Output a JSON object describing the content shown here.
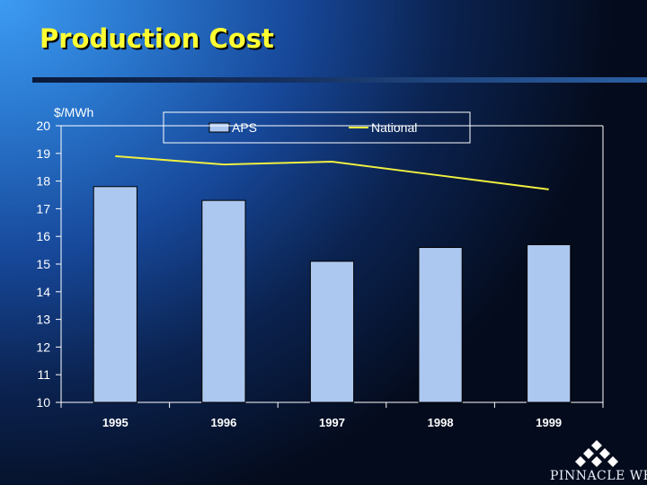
{
  "slide": {
    "title": "Production Cost",
    "unit_label": "$/MWh"
  },
  "logo": {
    "text": "PINNACLE WEST",
    "icon": "diamond-cluster-icon"
  },
  "colors": {
    "title": "#ffff33",
    "bar_fill": "#adc8f0",
    "line": "#f0f040",
    "axis": "#ffffff"
  },
  "chart_data": {
    "type": "bar",
    "categories": [
      "1995",
      "1996",
      "1997",
      "1998",
      "1999"
    ],
    "series": [
      {
        "name": "APS",
        "type": "bar",
        "values": [
          17.8,
          17.3,
          15.1,
          15.6,
          15.7
        ]
      },
      {
        "name": "National",
        "type": "line",
        "values": [
          18.9,
          18.6,
          18.7,
          18.2,
          17.7
        ]
      }
    ],
    "title": "",
    "xlabel": "",
    "ylabel": "$/MWh",
    "ylim": [
      10,
      20
    ],
    "yticks": [
      10,
      11,
      12,
      13,
      14,
      15,
      16,
      17,
      18,
      19,
      20
    ],
    "grid": false,
    "legend": "top"
  }
}
